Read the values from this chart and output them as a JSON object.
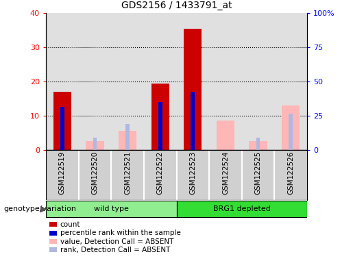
{
  "title": "GDS2156 / 1433791_at",
  "samples": [
    "GSM122519",
    "GSM122520",
    "GSM122521",
    "GSM122522",
    "GSM122523",
    "GSM122524",
    "GSM122525",
    "GSM122526"
  ],
  "count_values": [
    17.0,
    0,
    0,
    19.5,
    35.5,
    0,
    0,
    0
  ],
  "rank_values": [
    12.5,
    0,
    0,
    14.0,
    17.0,
    0,
    0,
    0
  ],
  "absent_value_values": [
    0,
    2.5,
    5.5,
    0,
    0,
    8.5,
    2.5,
    13.0
  ],
  "absent_rank_values": [
    0,
    3.5,
    7.5,
    0,
    0,
    0,
    3.5,
    10.5
  ],
  "ylim_left": [
    0,
    40
  ],
  "ylim_right": [
    0,
    100
  ],
  "yticks_left": [
    0,
    10,
    20,
    30,
    40
  ],
  "ytick_labels_right": [
    "0",
    "25",
    "50",
    "75",
    "100%"
  ],
  "color_count": "#cc0000",
  "color_rank": "#0000cc",
  "color_absent_value": "#ffb6b6",
  "color_absent_rank": "#b0b8e0",
  "group_starts": [
    0,
    4
  ],
  "group_ends": [
    3,
    7
  ],
  "group_labels": [
    "wild type",
    "BRG1 depleted"
  ],
  "group_colors": [
    "#90ee90",
    "#33dd33"
  ],
  "genotype_label": "genotype/variation",
  "legend_items": [
    {
      "label": "count",
      "color": "#cc0000"
    },
    {
      "label": "percentile rank within the sample",
      "color": "#0000cc"
    },
    {
      "label": "value, Detection Call = ABSENT",
      "color": "#ffb6b6"
    },
    {
      "label": "rank, Detection Call = ABSENT",
      "color": "#b0b8e0"
    }
  ]
}
